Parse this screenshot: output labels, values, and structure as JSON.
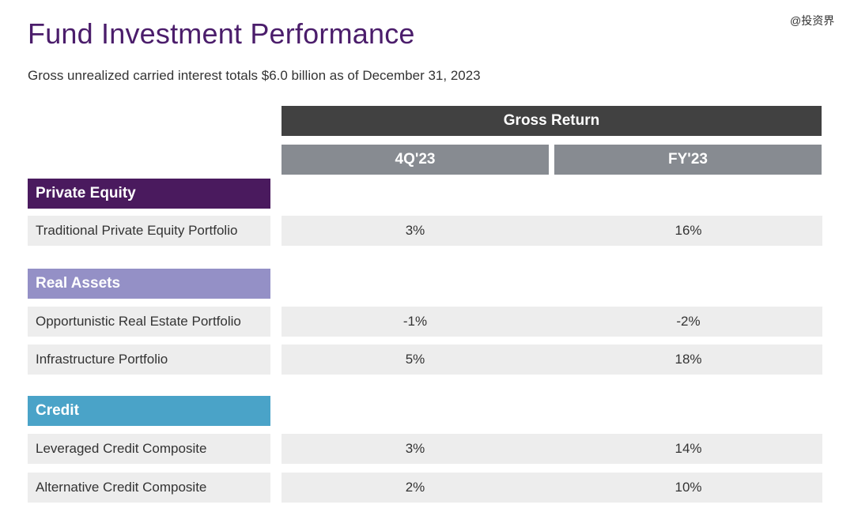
{
  "title": "Fund Investment Performance",
  "subtitle": "Gross unrealized carried interest totals $6.0 billion as of December 31, 2023",
  "watermark": "@投资界",
  "header": {
    "group": "Gross Return",
    "col_q": "4Q'23",
    "col_fy": "FY'23"
  },
  "colors": {
    "title": "#4b1d6b",
    "header_dark": "#414141",
    "header_grey": "#878b91",
    "private_equity": "#4a1a5e",
    "real_assets": "#9490c6",
    "credit": "#4aa3c8",
    "row_bg": "#ededed"
  },
  "sections": [
    {
      "name": "Private Equity",
      "rows": [
        {
          "label": "Traditional Private Equity Portfolio",
          "q": "3%",
          "fy": "16%"
        }
      ]
    },
    {
      "name": "Real Assets",
      "rows": [
        {
          "label": "Opportunistic Real Estate Portfolio",
          "q": "-1%",
          "fy": "-2%"
        },
        {
          "label": "Infrastructure Portfolio",
          "q": "5%",
          "fy": "18%"
        }
      ]
    },
    {
      "name": "Credit",
      "rows": [
        {
          "label": "Leveraged Credit Composite",
          "q": "3%",
          "fy": "14%"
        },
        {
          "label": "Alternative Credit Composite",
          "q": "2%",
          "fy": "10%"
        }
      ]
    }
  ]
}
